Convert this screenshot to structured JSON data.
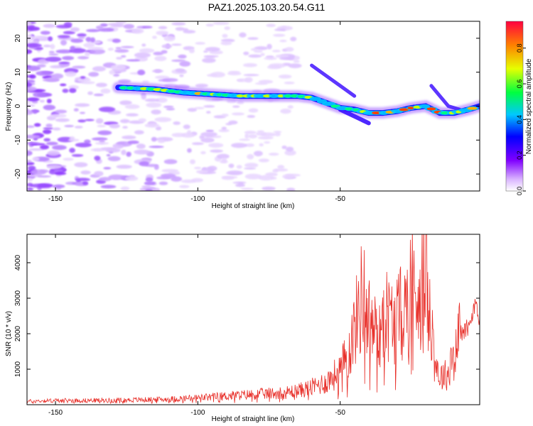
{
  "title": "PAZ1.2025.103.20.54.G11",
  "chart_data": [
    {
      "type": "heatmap",
      "title": "PAZ1.2025.103.20.54.G11",
      "xlabel": "Height of straight line (km)",
      "ylabel": "Frequency (Hz)",
      "xlim": [
        -160,
        -1
      ],
      "ylim": [
        -25,
        25
      ],
      "x_ticks": [
        -150,
        -100,
        -50
      ],
      "y_ticks": [
        -20,
        -10,
        0,
        10,
        20
      ],
      "colorbar": {
        "label": "Normalized spectral amplitude",
        "range": [
          0,
          0.95
        ],
        "ticks": [
          0.0,
          0.2,
          0.4,
          0.6,
          0.8
        ]
      },
      "ridge": {
        "x": [
          -128,
          -115,
          -105,
          -95,
          -85,
          -75,
          -65,
          -60,
          -55,
          -50,
          -45,
          -40,
          -35,
          -30,
          -25,
          -20,
          -15,
          -10,
          -5,
          -1
        ],
        "freq": [
          5.5,
          5,
          4,
          3.5,
          3,
          3,
          3,
          2.5,
          1,
          -0.5,
          -1,
          -2,
          -2,
          -1.5,
          -0.5,
          0,
          -2,
          -2,
          -1,
          0
        ]
      }
    },
    {
      "type": "line",
      "xlabel": "Height of straight line (km)",
      "ylabel": "SNR (10 * v/v)",
      "xlim": [
        -160,
        -1
      ],
      "ylim": [
        0,
        4800
      ],
      "x_ticks": [
        -150,
        -100,
        -50
      ],
      "y_ticks": [
        1000,
        2000,
        3000,
        4000
      ],
      "line_color": "#e8302a",
      "series": [
        {
          "x": [
            -160,
            -150,
            -140,
            -130,
            -120,
            -110,
            -100,
            -90,
            -80,
            -70,
            -65,
            -60,
            -55,
            -50,
            -47,
            -45,
            -42,
            -40,
            -37,
            -35,
            -32,
            -30,
            -27,
            -25,
            -22,
            -20,
            -18,
            -17,
            -15,
            -12,
            -10,
            -8,
            -6,
            -4,
            -3,
            -2,
            -1
          ],
          "values": [
            100,
            120,
            120,
            130,
            140,
            160,
            200,
            250,
            300,
            350,
            400,
            500,
            650,
            1000,
            1500,
            2200,
            3300,
            2500,
            2000,
            2800,
            2400,
            2500,
            2800,
            3600,
            3200,
            4300,
            2700,
            1400,
            800,
            900,
            1800,
            2000,
            2100,
            2300,
            2800,
            2600,
            2300
          ]
        }
      ]
    }
  ]
}
